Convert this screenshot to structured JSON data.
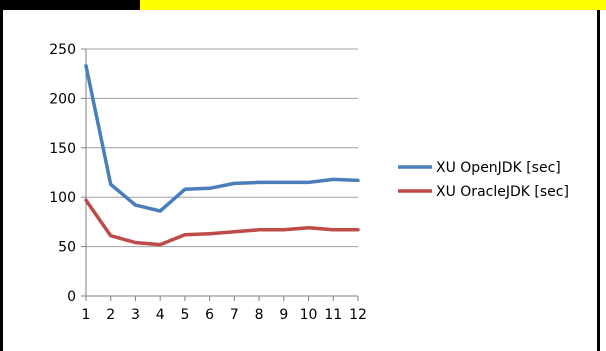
{
  "chart_data": {
    "type": "line",
    "x": [
      1,
      2,
      3,
      4,
      5,
      6,
      7,
      8,
      9,
      10,
      11,
      12
    ],
    "xticks": [
      "1",
      "2",
      "3",
      "4",
      "5",
      "6",
      "7",
      "8",
      "9",
      "10",
      "11",
      "12"
    ],
    "ylim": [
      0,
      250
    ],
    "yticks": [
      "0",
      "50",
      "100",
      "150",
      "200",
      "250"
    ],
    "grid": true,
    "legend_position": "right",
    "series": [
      {
        "name": "XU OpenJDK [sec]",
        "color": "#4a7ebb",
        "values": [
          233,
          113,
          92,
          86,
          108,
          109,
          114,
          115,
          115,
          115,
          118,
          117
        ]
      },
      {
        "name": "XU OracleJDK [sec]",
        "color": "#be4b48",
        "values": [
          97,
          61,
          54,
          52,
          62,
          63,
          65,
          67,
          67,
          69,
          67,
          67
        ]
      }
    ]
  }
}
